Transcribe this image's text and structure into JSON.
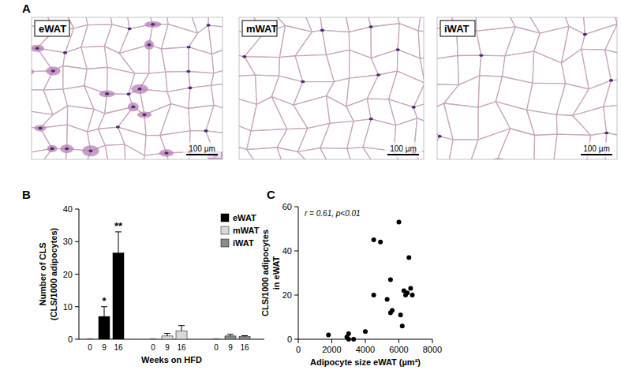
{
  "figure": {
    "panel_labels": [
      "A",
      "B",
      "C"
    ]
  },
  "images": [
    {
      "label": "eWAT",
      "scale_bar": "100 µm"
    },
    {
      "label": "mWAT",
      "scale_bar": "100 µm"
    },
    {
      "label": "iWAT",
      "scale_bar": "100 µm"
    }
  ],
  "chart_data": [
    {
      "type": "bar",
      "x_label": "Weeks on HFD",
      "y_label": [
        "Number of CLS",
        "(CLS/1000 adipocytes)"
      ],
      "categories": [
        "0",
        "9",
        "16",
        "0",
        "9",
        "16",
        "0",
        "9",
        "16"
      ],
      "series": [
        {
          "name": "eWAT",
          "color": "#000000",
          "values": [
            0,
            7,
            26.5,
            null,
            null,
            null,
            null,
            null,
            null
          ],
          "errors": [
            0,
            3,
            6.5,
            null,
            null,
            null,
            null,
            null,
            null
          ]
        },
        {
          "name": "mWAT",
          "color": "#d9d9d9",
          "values": [
            null,
            null,
            null,
            0,
            1,
            2.5,
            null,
            null,
            null
          ],
          "errors": [
            null,
            null,
            null,
            0,
            0.8,
            1.7,
            null,
            null,
            null
          ]
        },
        {
          "name": "iWAT",
          "color": "#8c8c8c",
          "values": [
            null,
            null,
            null,
            null,
            null,
            null,
            0,
            1,
            0.8
          ],
          "errors": [
            null,
            null,
            null,
            null,
            null,
            null,
            0,
            0.5,
            0.3
          ]
        }
      ],
      "annotations": [
        {
          "text": "*",
          "series": 0,
          "index": 1
        },
        {
          "text": "**",
          "series": 0,
          "index": 2
        }
      ],
      "ylim": [
        0,
        40
      ],
      "yticks": [
        0,
        10,
        20,
        30,
        40
      ],
      "legend": "upper right"
    },
    {
      "type": "scatter",
      "x_label": "Adipocyte size eWAT (µm²)",
      "y_label": [
        "CLS/1000 adipocytes",
        "in eWAT"
      ],
      "annotation": "r = 0.61, p<0.01",
      "x": [
        1800,
        2900,
        3000,
        3000,
        3300,
        4000,
        4500,
        4500,
        4900,
        5300,
        5500,
        5500,
        5600,
        6000,
        6100,
        6200,
        6300,
        6400,
        6500,
        6600,
        6700,
        6800
      ],
      "values": [
        2,
        1,
        2.5,
        0,
        0,
        3.5,
        20,
        45,
        44,
        18,
        12,
        27,
        13,
        53,
        11,
        6,
        22,
        20,
        21,
        37,
        23,
        20
      ],
      "color": "#000000",
      "xlim": [
        0,
        8000
      ],
      "xticks": [
        0,
        2000,
        4000,
        6000,
        8000
      ],
      "ylim": [
        0,
        60
      ],
      "yticks": [
        0,
        20,
        40,
        60
      ]
    }
  ]
}
